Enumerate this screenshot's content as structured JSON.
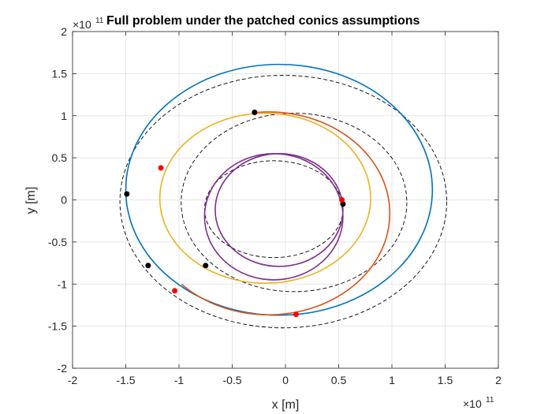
{
  "chart_data": {
    "type": "line",
    "title": "Full problem under the patched conics assumptions",
    "xlabel": "x [m]",
    "ylabel": "y [m]",
    "exponent": {
      "base": "×10",
      "power": "11"
    },
    "xlim": [
      -2,
      2
    ],
    "ylim": [
      -2,
      2
    ],
    "xticks": [
      -2,
      -1.5,
      -1,
      -0.5,
      0,
      0.5,
      1,
      1.5,
      2
    ],
    "yticks": [
      -2,
      -1.5,
      -1,
      -0.5,
      0,
      0.5,
      1,
      1.5,
      2
    ],
    "xtick_labels": [
      "-2",
      "-1.5",
      "-1",
      "-0.5",
      "0",
      "0.5",
      "1",
      "1.5",
      "2"
    ],
    "ytick_labels": [
      "-2",
      "-1.5",
      "-1",
      "-0.5",
      "0",
      "0.5",
      "1",
      "1.5",
      "2"
    ],
    "grid": true,
    "dashed_orbits": [
      {
        "cx": -0.11,
        "cy": -0.11,
        "rx": 0.65,
        "ry": 0.575,
        "color": "#000000"
      },
      {
        "cx": 0.08,
        "cy": -0.03,
        "rx": 1.06,
        "ry": 1.06,
        "color": "#000000"
      },
      {
        "cx": -0.02,
        "cy": -0.02,
        "rx": 1.535,
        "ry": 1.5,
        "color": "#000000"
      }
    ],
    "series": [
      {
        "color": "#0072BD",
        "orbit": {
          "cx": -0.06,
          "cy": 0.12,
          "rx": 1.44,
          "ry": 1.49
        },
        "arc": "full"
      },
      {
        "color": "#D95319",
        "orbit": {
          "cx": -0.16,
          "cy": -0.16,
          "rx": 1.14,
          "ry": 1.205
        },
        "arc": "from",
        "arc_from": [
          -1.05,
          -1.08
        ],
        "arc_to": [
          -0.3,
          1.04
        ]
      },
      {
        "color": "#EDB120",
        "orbit": {
          "cx": -0.19,
          "cy": 0.02,
          "rx": 0.99,
          "ry": 1.01
        },
        "arc": "full"
      },
      {
        "color": "#7E2F8E",
        "orbit": {
          "cx": -0.11,
          "cy": -0.2,
          "rx": 0.65,
          "ry": 0.75
        },
        "arc": "full"
      },
      {
        "color": "#7E2F8E",
        "orbit": {
          "cx": -0.06,
          "cy": -0.12,
          "rx": 0.6,
          "ry": 0.67
        },
        "arc": "full"
      }
    ],
    "markers": [
      {
        "x": -1.49,
        "y": 0.07,
        "color": "#000000"
      },
      {
        "x": -1.29,
        "y": -0.78,
        "color": "#000000"
      },
      {
        "x": -0.75,
        "y": -0.78,
        "color": "#000000"
      },
      {
        "x": -0.29,
        "y": 1.04,
        "color": "#000000"
      },
      {
        "x": 0.54,
        "y": -0.05,
        "color": "#000000"
      },
      {
        "x": -1.17,
        "y": 0.38,
        "color": "#FF0000"
      },
      {
        "x": -1.04,
        "y": -1.08,
        "color": "#FF0000"
      },
      {
        "x": 0.53,
        "y": 0.0,
        "color": "#FF0000"
      },
      {
        "x": 0.1,
        "y": -1.36,
        "color": "#FF0000"
      }
    ]
  }
}
